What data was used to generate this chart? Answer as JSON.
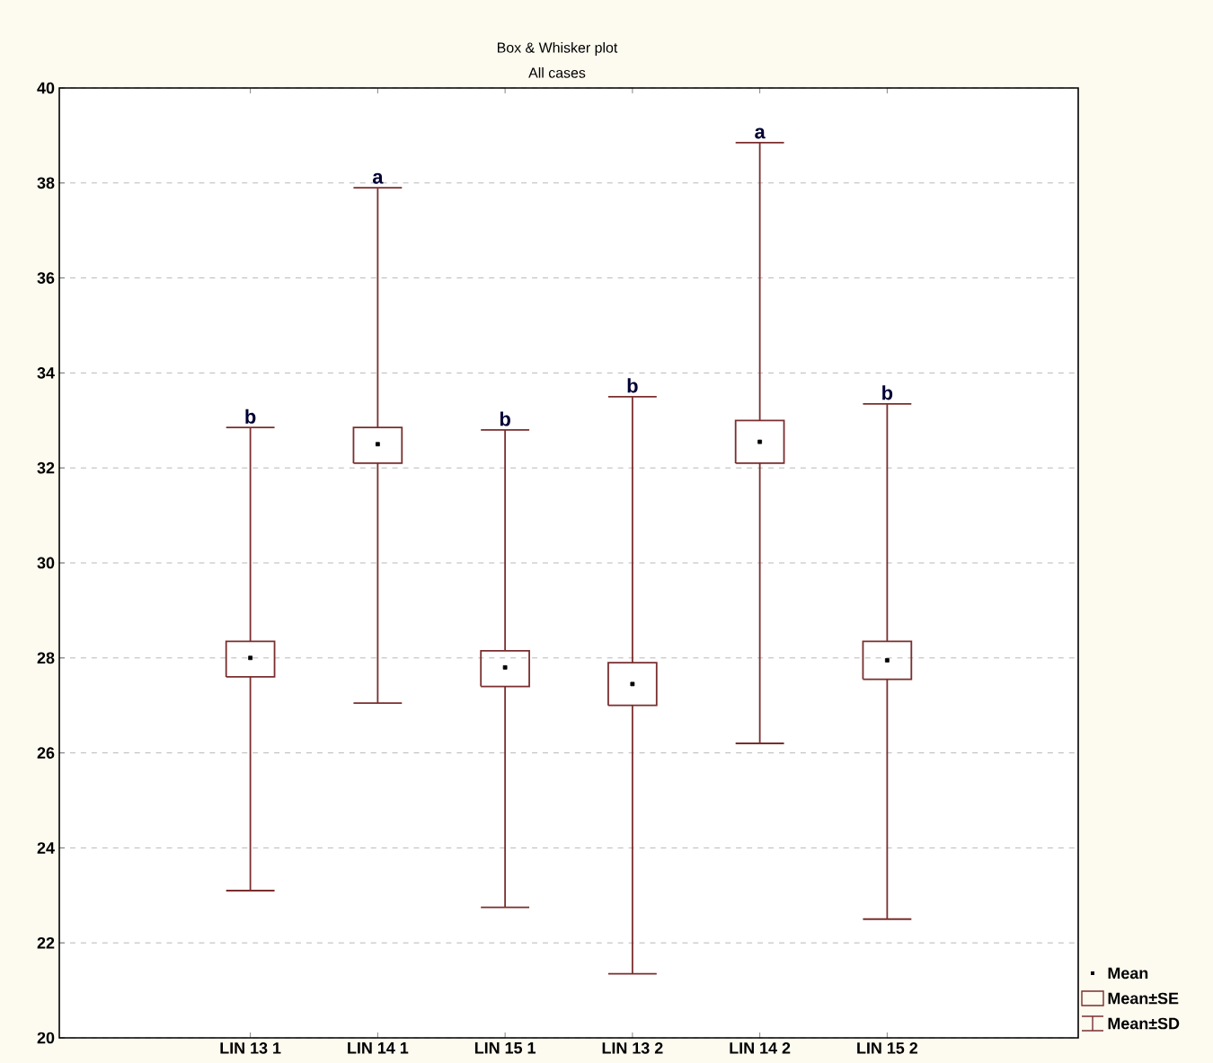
{
  "chart_data": {
    "type": "box",
    "title": "Box & Whisker plot",
    "subtitle": "All cases",
    "categories": [
      "LIN 13 1",
      "LIN 14 1",
      "LIN 15 1",
      "LIN 13 2",
      "LIN 14 2",
      "LIN 15 2"
    ],
    "color": "#7a2e2e",
    "boxes": [
      {
        "low": 23.1,
        "q1": 27.6,
        "q3": 28.35,
        "high": 32.85,
        "mean": 28.0
      },
      {
        "low": 27.05,
        "q1": 32.1,
        "q3": 32.85,
        "high": 37.9,
        "mean": 32.5
      },
      {
        "low": 22.75,
        "q1": 27.4,
        "q3": 28.15,
        "high": 32.8,
        "mean": 27.8
      },
      {
        "low": 21.35,
        "q1": 27.0,
        "q3": 27.9,
        "high": 33.5,
        "mean": 27.45
      },
      {
        "low": 26.2,
        "q1": 32.1,
        "q3": 33.0,
        "high": 38.85,
        "mean": 32.55
      },
      {
        "low": 22.5,
        "q1": 27.55,
        "q3": 28.35,
        "high": 33.35,
        "mean": 27.95
      }
    ],
    "ylim": [
      20,
      40
    ],
    "yticks": [
      20,
      22,
      24,
      26,
      28,
      30,
      32,
      34,
      36,
      38,
      40
    ],
    "grid": "y",
    "annotations": [
      {
        "text": "b",
        "x": "LIN 13 1",
        "y": 32.85
      },
      {
        "text": "a",
        "x": "LIN 14 1",
        "y": 37.9
      },
      {
        "text": "b",
        "x": "LIN 15 1",
        "y": 32.8
      },
      {
        "text": "b",
        "x": "LIN 13 2",
        "y": 33.5
      },
      {
        "text": "a",
        "x": "LIN 14 2",
        "y": 38.85
      },
      {
        "text": "b",
        "x": "LIN 15 2",
        "y": 33.35
      },
      "Mean",
      "Mean±SE",
      "Mean±SD"
    ]
  }
}
